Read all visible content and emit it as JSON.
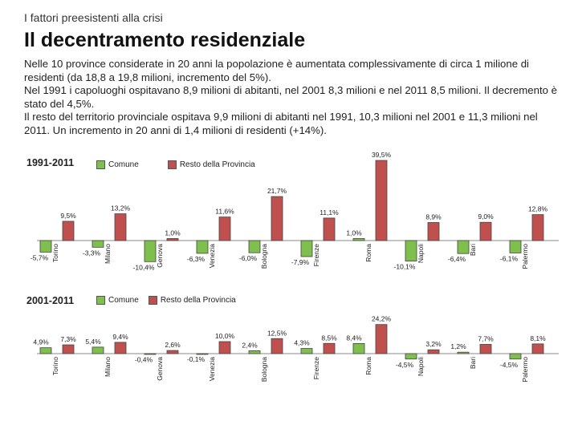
{
  "header": {
    "kicker": "I fattori preesistenti alla crisi",
    "title": "Il decentramento residenziale"
  },
  "paragraph": {
    "lines": [
      "Nelle 10 province considerate in 20 anni la popolazione è aumentata complessivamente di circa 1 milione di residenti (da 18,8 a 19,8 milioni, incremento del 5%).",
      "Nel 1991 i capoluoghi ospitavano 8,9 milioni di abitanti, nel 2001 8,3 milioni e nel 2011 8,5 milioni. Il decremento è stato del 4,5%.",
      "Il resto del territorio provinciale ospitava 9,9 milioni di abitanti nel 1991,  10,3 milioni nel 2001 e 11,3 milioni nel 2011. Un incremento in 20 anni di 1,4 milioni di residenti (+14%)."
    ]
  },
  "colors": {
    "comune": "#7fbf4d",
    "resto": "#c0504d",
    "border": "#444444"
  },
  "chart_data": [
    {
      "type": "bar",
      "label": "1991-2011",
      "categories": [
        "Torino",
        "Milano",
        "Genova",
        "Venezia",
        "Bologna",
        "Firenze",
        "Roma",
        "Napoli",
        "Bari",
        "Palermo"
      ],
      "series": [
        {
          "name": "Comune",
          "values": [
            -5.7,
            -3.3,
            -10.4,
            -6.3,
            -6.0,
            -7.9,
            1.0,
            -10.1,
            -6.4,
            -6.1
          ],
          "labels": [
            "-5,7%",
            "-3,3%",
            "-10,4%",
            "-6,3%",
            "-6,0%",
            "-7,9%",
            "1,0%",
            "-10,1%",
            "-6,4%",
            "-6,1%"
          ]
        },
        {
          "name": "Resto della Provincia",
          "values": [
            9.5,
            13.2,
            1.0,
            11.6,
            21.7,
            11.1,
            39.5,
            8.9,
            9.0,
            12.8
          ],
          "labels": [
            "9,5%",
            "13,2%",
            "1,0%",
            "11,6%",
            "21,7%",
            "11,1%",
            "39,5%",
            "8,9%",
            "9,0%",
            "12,8%"
          ]
        }
      ],
      "legend": {
        "position": "top-left"
      },
      "grid": false
    },
    {
      "type": "bar",
      "label": "2001-2011",
      "categories": [
        "Torino",
        "Milano",
        "Genova",
        "Venezia",
        "Bologna",
        "Firenze",
        "Roma",
        "Napoli",
        "Bari",
        "Palermo"
      ],
      "series": [
        {
          "name": "Comune",
          "values": [
            4.9,
            5.4,
            -0.4,
            -0.1,
            2.4,
            4.3,
            8.4,
            -4.5,
            1.2,
            -4.5
          ],
          "labels": [
            "4,9%",
            "5,4%",
            "-0,4%",
            "-0,1%",
            "2,4%",
            "4,3%",
            "8,4%",
            "-4,5%",
            "1,2%",
            "-4,5%"
          ]
        },
        {
          "name": "Resto della Provincia",
          "values": [
            7.3,
            9.4,
            2.6,
            10.0,
            12.5,
            8.5,
            24.2,
            3.2,
            7.7,
            8.1
          ],
          "labels": [
            "7,3%",
            "9,4%",
            "2,6%",
            "10,0%",
            "12,5%",
            "8,5%",
            "24,2%",
            "3,2%",
            "7,7%",
            "8,1%"
          ]
        }
      ],
      "legend": {
        "position": "top-left"
      },
      "grid": false
    }
  ]
}
